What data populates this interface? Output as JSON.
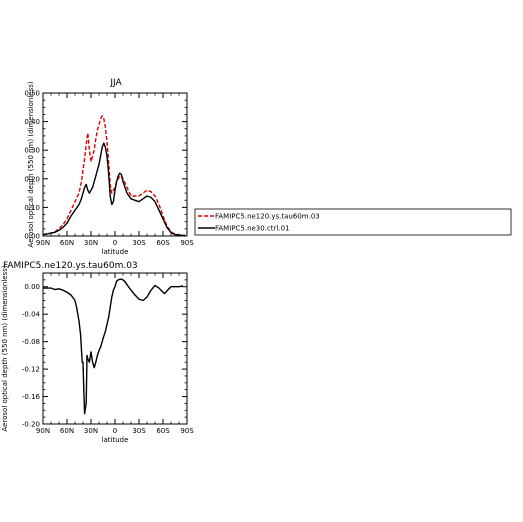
{
  "chart_data": [
    {
      "type": "line",
      "title": "JJA",
      "xlabel": "latitude",
      "ylabel": "Aerosol optical depth (550 nm) (dimensionless)",
      "xlim": [
        -90,
        90
      ],
      "ylim": [
        0,
        0.5
      ],
      "xticks": [
        -90,
        -60,
        -30,
        0,
        30,
        60,
        90
      ],
      "xtick_labels": [
        "90N",
        "60N",
        "30N",
        "0",
        "30S",
        "60S",
        "90S"
      ],
      "yticks": [
        0,
        0.1,
        0.2,
        0.3,
        0.4,
        0.5
      ],
      "ytick_labels": [
        "0.00",
        "0.10",
        "0.20",
        "0.30",
        "0.40",
        "0.50"
      ],
      "legend_position": "right",
      "series": [
        {
          "name": "FAMIPC5.ne120.ys.tau60m.03",
          "color": "#dd0000",
          "style": "dashed",
          "x": [
            -90,
            -85,
            -80,
            -75,
            -70,
            -65,
            -60,
            -55,
            -50,
            -45,
            -42,
            -40,
            -38,
            -36,
            -34,
            -32,
            -30,
            -28,
            -26,
            -24,
            -22,
            -20,
            -18,
            -16,
            -14,
            -12,
            -10,
            -8,
            -6,
            -4,
            -2,
            0,
            2,
            4,
            6,
            8,
            10,
            15,
            20,
            25,
            30,
            35,
            40,
            45,
            50,
            55,
            60,
            65,
            70,
            75,
            80,
            85,
            88
          ],
          "y": [
            0.005,
            0.007,
            0.01,
            0.015,
            0.025,
            0.04,
            0.06,
            0.09,
            0.12,
            0.15,
            0.19,
            0.23,
            0.27,
            0.32,
            0.36,
            0.3,
            0.26,
            0.28,
            0.3,
            0.34,
            0.37,
            0.39,
            0.41,
            0.42,
            0.41,
            0.38,
            0.33,
            0.26,
            0.18,
            0.15,
            0.16,
            0.17,
            0.19,
            0.2,
            0.21,
            0.21,
            0.2,
            0.17,
            0.14,
            0.14,
            0.14,
            0.15,
            0.16,
            0.155,
            0.14,
            0.11,
            0.07,
            0.035,
            0.015,
            0.006,
            0.003,
            0.002,
            0.002
          ]
        },
        {
          "name": "FAMIPC5.ne30.ctrl.01",
          "color": "#000000",
          "style": "solid",
          "x": [
            -90,
            -85,
            -80,
            -75,
            -70,
            -65,
            -60,
            -55,
            -50,
            -45,
            -42,
            -40,
            -38,
            -36,
            -34,
            -32,
            -30,
            -28,
            -26,
            -24,
            -22,
            -20,
            -18,
            -16,
            -14,
            -12,
            -10,
            -8,
            -6,
            -4,
            -2,
            0,
            2,
            4,
            6,
            8,
            10,
            15,
            20,
            25,
            30,
            35,
            40,
            45,
            50,
            55,
            60,
            65,
            70,
            75,
            80,
            85,
            88
          ],
          "y": [
            0.005,
            0.007,
            0.01,
            0.013,
            0.02,
            0.03,
            0.045,
            0.07,
            0.09,
            0.11,
            0.13,
            0.15,
            0.17,
            0.18,
            0.16,
            0.15,
            0.16,
            0.17,
            0.19,
            0.21,
            0.23,
            0.25,
            0.28,
            0.31,
            0.325,
            0.31,
            0.28,
            0.22,
            0.14,
            0.11,
            0.12,
            0.16,
            0.19,
            0.21,
            0.22,
            0.215,
            0.19,
            0.15,
            0.13,
            0.125,
            0.12,
            0.13,
            0.14,
            0.135,
            0.12,
            0.09,
            0.06,
            0.03,
            0.012,
            0.005,
            0.003,
            0.002,
            0.002
          ]
        }
      ]
    },
    {
      "type": "line",
      "title": "FAMIPC5.ne120.ys.tau60m.03",
      "xlabel": "latitude",
      "ylabel": "Aerosol optical depth (550 nm) (dimensionless)",
      "xlim": [
        -90,
        90
      ],
      "ylim": [
        -0.2,
        0.02
      ],
      "xticks": [
        -90,
        -60,
        -30,
        0,
        30,
        60,
        90
      ],
      "xtick_labels": [
        "90N",
        "60N",
        "30N",
        "0",
        "30S",
        "60S",
        "90S"
      ],
      "yticks": [
        0,
        -0.04,
        -0.08,
        -0.12,
        -0.16,
        -0.2
      ],
      "ytick_labels": [
        "0.00",
        "-0.04",
        "-0.08",
        "-0.12",
        "-0.16",
        "-0.20"
      ],
      "series": [
        {
          "color": "#000000",
          "style": "solid",
          "x": [
            -90,
            -80,
            -75,
            -70,
            -65,
            -60,
            -55,
            -50,
            -48,
            -45,
            -43,
            -42,
            -41,
            -40,
            -39,
            -38,
            -36,
            -35,
            -34,
            -32,
            -30,
            -28,
            -26,
            -24,
            -22,
            -20,
            -18,
            -16,
            -14,
            -12,
            -10,
            -8,
            -6,
            -4,
            -2,
            0,
            2,
            4,
            6,
            8,
            10,
            12,
            15,
            20,
            25,
            30,
            35,
            40,
            45,
            50,
            55,
            60,
            62,
            65,
            70,
            75,
            80,
            85
          ],
          "y": [
            -0.002,
            -0.002,
            -0.004,
            -0.003,
            -0.005,
            -0.008,
            -0.012,
            -0.02,
            -0.03,
            -0.05,
            -0.07,
            -0.09,
            -0.11,
            -0.11,
            -0.15,
            -0.185,
            -0.17,
            -0.1,
            -0.105,
            -0.11,
            -0.095,
            -0.11,
            -0.118,
            -0.11,
            -0.1,
            -0.093,
            -0.088,
            -0.08,
            -0.072,
            -0.065,
            -0.055,
            -0.045,
            -0.03,
            -0.015,
            -0.005,
            0.0,
            0.008,
            0.01,
            0.011,
            0.011,
            0.01,
            0.008,
            0.003,
            -0.005,
            -0.012,
            -0.018,
            -0.02,
            -0.015,
            -0.005,
            0.002,
            -0.002,
            -0.008,
            -0.01,
            -0.006,
            0.0,
            0.0,
            0.0,
            0.001
          ]
        }
      ]
    }
  ]
}
